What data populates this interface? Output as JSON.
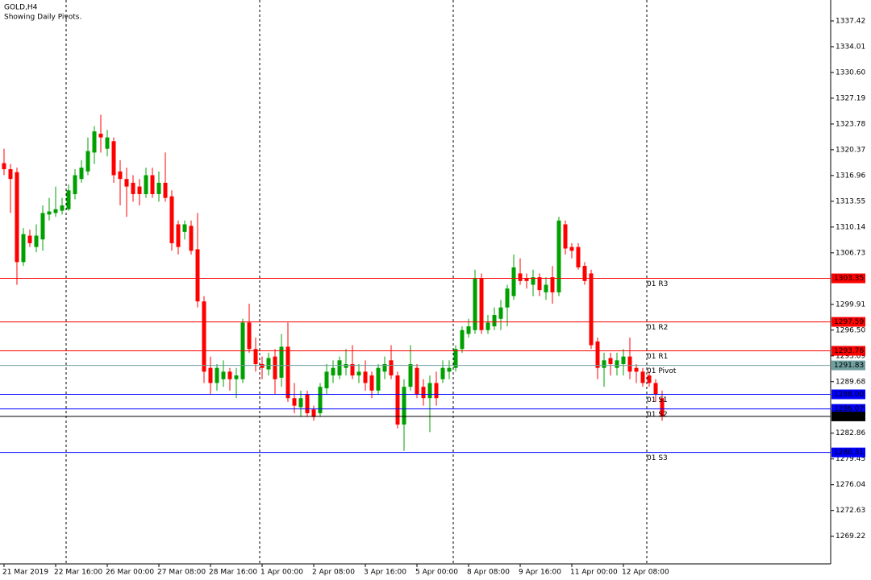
{
  "chart_data": {
    "type": "candlestick",
    "title": "GOLD,H4",
    "subtitle": "Showing Daily Pivots.",
    "up_color": "#00a000",
    "down_color": "#ff0000",
    "categories": [
      "21 Mar 2019",
      null,
      null,
      null,
      null,
      null,
      null,
      null,
      "22 Mar 16:00",
      null,
      null,
      null,
      null,
      null,
      null,
      null,
      "26 Mar 00:00",
      null,
      null,
      null,
      null,
      null,
      null,
      null,
      "27 Mar 08:00",
      null,
      null,
      null,
      null,
      null,
      null,
      null,
      "28 Mar 16:00",
      null,
      null,
      null,
      null,
      null,
      null,
      null,
      "1 Apr 00:00",
      null,
      null,
      null,
      null,
      null,
      null,
      null,
      "2 Apr 08:00",
      null,
      null,
      null,
      null,
      null,
      null,
      null,
      "3 Apr 16:00",
      null,
      null,
      null,
      null,
      null,
      null,
      null,
      "5 Apr 00:00",
      null,
      null,
      null,
      null,
      null,
      null,
      null,
      "8 Apr 08:00",
      null,
      null,
      null,
      null,
      null,
      null,
      null,
      "9 Apr 16:00",
      null,
      null,
      null,
      null,
      null,
      null,
      null,
      "11 Apr 00:00",
      null,
      null,
      null,
      null,
      null,
      null,
      null,
      "12 Apr 08:00",
      null,
      null,
      null,
      null,
      null,
      null
    ],
    "open": [
      1318.6,
      1317.8,
      1317.4,
      1305.5,
      1309,
      1307.5,
      1308.5,
      1311.8,
      1312,
      1312.3,
      1312.5,
      1314.5,
      1316.5,
      1317.5,
      1320,
      1322.5,
      1320.5,
      1321.5,
      1317.5,
      1316.5,
      1316,
      1315.5,
      1314.5,
      1317,
      1314.5,
      1316,
      1314.2,
      1310.5,
      1309.5,
      1310.3,
      1307.2,
      1300.3,
      1291.5,
      1289.5,
      1290,
      1291,
      1290,
      1290,
      1297.5,
      1294,
      1292,
      1291.3,
      1293,
      1290.2,
      1294.3,
      1287.5,
      1286.3,
      1288,
      1286,
      1285.5,
      1288.8,
      1290.5,
      1290.5,
      1291.5,
      1292,
      1290.5,
      1291,
      1290.5,
      1288.5,
      1291,
      1292.5,
      1290.5,
      1284,
      1289,
      1291.5,
      1289,
      1287.5,
      1289.5,
      1290,
      1291,
      1291.5,
      1294,
      1296,
      1296.5,
      1303.3,
      1296.5,
      1297,
      1298,
      1299.5,
      1301,
      1304,
      1303.3,
      1302.5,
      1303.5,
      1301.5,
      1303.5,
      1301.5,
      1310.5,
      1307.5,
      1307.5,
      1305,
      1304,
      1295,
      1291.5,
      1292.8,
      1291.5,
      1292,
      1293,
      1291.5,
      1291,
      1290.5,
      1289.5,
      1287.5
    ],
    "high": [
      1320.5,
      1318.5,
      1318,
      1310,
      1309.8,
      1310.5,
      1313,
      1314,
      1315.5,
      1314,
      1315.8,
      1317.8,
      1319,
      1322,
      1323.5,
      1325,
      1323,
      1322,
      1319,
      1318,
      1317,
      1316.5,
      1318,
      1318,
      1317.5,
      1320,
      1315,
      1311,
      1311,
      1311,
      1312,
      1301,
      1293,
      1292,
      1292.5,
      1291.5,
      1291.5,
      1298,
      1300,
      1295.5,
      1293,
      1293.5,
      1294,
      1296,
      1297.5,
      1289.5,
      1288.5,
      1288.5,
      1286.5,
      1289.5,
      1292,
      1292.5,
      1293,
      1294,
      1294.5,
      1292,
      1292.5,
      1291,
      1292,
      1293,
      1294.5,
      1291,
      1290,
      1294.5,
      1292,
      1290,
      1290.5,
      1291,
      1292.5,
      1292.5,
      1294.5,
      1297,
      1298,
      1304.5,
      1304,
      1298.5,
      1299.5,
      1300.5,
      1302.5,
      1306.5,
      1306,
      1304,
      1304.5,
      1304,
      1303.5,
      1305,
      1311.5,
      1311,
      1308,
      1308,
      1305.5,
      1304.5,
      1295.5,
      1293.5,
      1293.5,
      1293.5,
      1294,
      1295.5,
      1292,
      1291.5,
      1291,
      1290,
      1288.5
    ],
    "low": [
      1317,
      1312,
      1302.5,
      1305,
      1307.5,
      1306.8,
      1307,
      1311,
      1311.5,
      1311.8,
      1312.3,
      1313.8,
      1316,
      1317,
      1318.5,
      1320,
      1319.5,
      1316,
      1313,
      1311.5,
      1313.5,
      1313,
      1314,
      1314,
      1313.5,
      1313.5,
      1307,
      1306.5,
      1308.5,
      1306.5,
      1299.5,
      1289.5,
      1288,
      1288.5,
      1289,
      1288.5,
      1287.5,
      1289.5,
      1293.5,
      1291,
      1290,
      1290.5,
      1288,
      1289,
      1287,
      1285.5,
      1285,
      1285,
      1284.5,
      1285,
      1288,
      1289.5,
      1290,
      1290.5,
      1290,
      1289.5,
      1288.5,
      1287.5,
      1288,
      1290,
      1290,
      1283.5,
      1280.5,
      1288.5,
      1287.5,
      1286.5,
      1283,
      1286.5,
      1289.5,
      1290,
      1291,
      1293.5,
      1295.5,
      1296,
      1296,
      1296,
      1296.5,
      1296.5,
      1297,
      1300.5,
      1302.5,
      1302,
      1301,
      1301,
      1300.5,
      1300,
      1301,
      1306.5,
      1306,
      1304.5,
      1302.5,
      1294,
      1290,
      1289,
      1290.5,
      1290.5,
      1290.5,
      1290,
      1289.5,
      1289,
      1289,
      1287,
      1284.5
    ],
    "close": [
      1317.8,
      1316.5,
      1305.5,
      1309.2,
      1308,
      1309,
      1312,
      1312.2,
      1312.5,
      1313,
      1315,
      1317,
      1318,
      1320.2,
      1322.8,
      1322,
      1322,
      1317,
      1316.5,
      1315.5,
      1314.5,
      1314.5,
      1317,
      1314.5,
      1316,
      1314,
      1308,
      1307.5,
      1310.5,
      1307,
      1300.3,
      1291,
      1289.5,
      1291.5,
      1291,
      1290,
      1290.5,
      1297.5,
      1294,
      1292,
      1291.5,
      1292.8,
      1290,
      1294.3,
      1287.5,
      1286.5,
      1287.5,
      1285.5,
      1285,
      1289,
      1291,
      1291.5,
      1292.5,
      1292,
      1290.5,
      1291,
      1289.5,
      1288.5,
      1291.5,
      1292,
      1290.5,
      1284,
      1289,
      1292,
      1288,
      1287.5,
      1289.5,
      1287.5,
      1291.5,
      1291.5,
      1294,
      1296.5,
      1297,
      1303.3,
      1296.5,
      1297.5,
      1298.5,
      1299.5,
      1302,
      1304.8,
      1303,
      1303,
      1303.5,
      1301.8,
      1302.5,
      1301.5,
      1311,
      1307.3,
      1307,
      1304.8,
      1303,
      1294.5,
      1291.5,
      1292.5,
      1292,
      1292.5,
      1293,
      1291,
      1291,
      1289.5,
      1289.5,
      1288,
      1285.1
    ],
    "ylim": [
      1265.56,
      1340.19
    ],
    "yticks": [
      1337.42,
      1334.01,
      {
        "value": 1330.6,
        "label": "1330.60"
      },
      1327.19,
      1323.78,
      1320.37,
      1316.96,
      1313.55,
      1310.14,
      1306.73,
      1299.91,
      {
        "value": 1296.5,
        "label": "1296.50"
      },
      1293.09,
      1289.68,
      1282.86,
      1279.45,
      1276.04,
      1272.63,
      1269.22
    ],
    "levels": [
      {
        "name": "01 R3",
        "value": 1303.35,
        "color": "#ff0000"
      },
      {
        "name": "01 R2",
        "value": 1297.59,
        "color": "#ff0000"
      },
      {
        "name": "01 R1",
        "value": 1293.76,
        "color": "#ff0000"
      },
      {
        "name": "01 Pivot",
        "value": 1291.83,
        "color": "#6f9f9f"
      },
      {
        "name": "01 S1",
        "value": 1288,
        "value_label": "1288.00",
        "color": "#0000ff"
      },
      {
        "name": "01 S2",
        "value": 1286.07,
        "color": "#0000ff"
      },
      {
        "name": "01 S3",
        "value": 1280.31,
        "color": "#0000ff"
      }
    ],
    "last_price": {
      "value": 1285.08,
      "color": "#000000"
    }
  }
}
